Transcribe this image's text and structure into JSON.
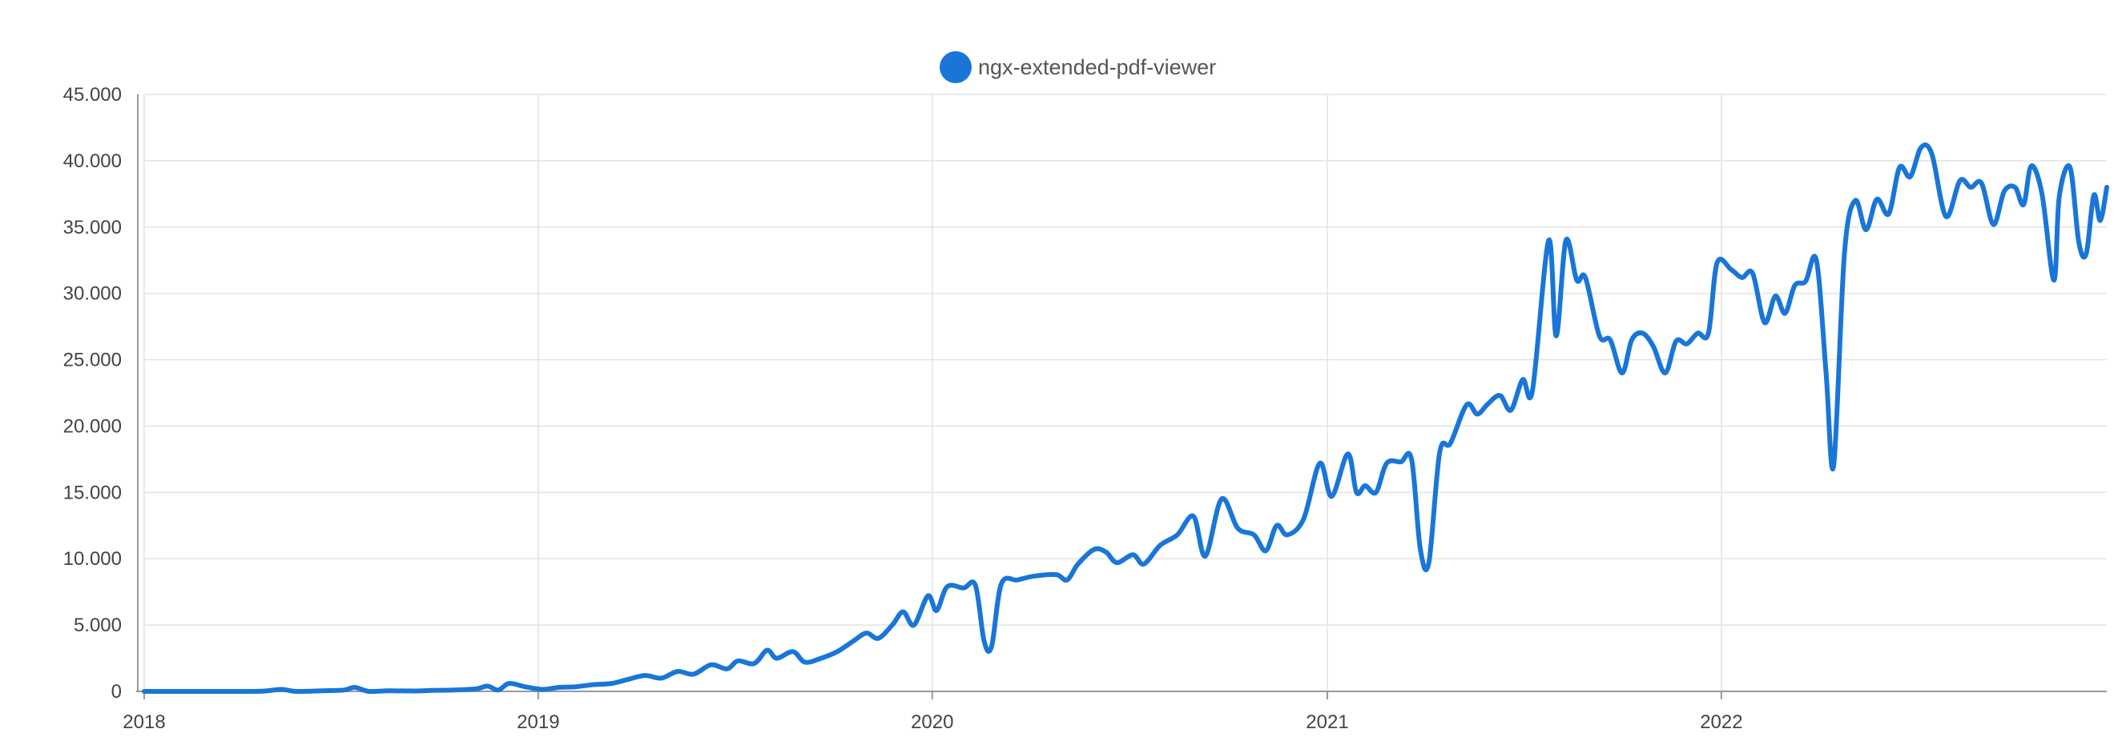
{
  "chart_data": {
    "type": "line",
    "legend": {
      "position": "top-center"
    },
    "grid": true,
    "ylim": [
      0,
      45000
    ],
    "xlim": [
      "2018-01-01",
      "2022-12-24"
    ],
    "y_tick_values": [
      0,
      5000,
      10000,
      15000,
      20000,
      25000,
      30000,
      35000,
      40000,
      45000
    ],
    "y_tick_labels": [
      "0",
      "5.000",
      "10.000",
      "15.000",
      "20.000",
      "25.000",
      "30.000",
      "35.000",
      "40.000",
      "45.000"
    ],
    "x_ticks": [
      {
        "date": "2018-01-01",
        "label": "2018"
      },
      {
        "date": "2019-01-01",
        "label": "2019"
      },
      {
        "date": "2020-01-01",
        "label": "2020"
      },
      {
        "date": "2021-01-01",
        "label": "2021"
      },
      {
        "date": "2022-01-01",
        "label": "2022"
      }
    ],
    "series": [
      {
        "name": "ngx-extended-pdf-viewer",
        "color": "#1976d8",
        "points": [
          [
            "2018-01-01",
            0
          ],
          [
            "2018-02-01",
            0
          ],
          [
            "2018-03-15",
            0
          ],
          [
            "2018-04-20",
            20
          ],
          [
            "2018-05-08",
            150
          ],
          [
            "2018-05-22",
            0
          ],
          [
            "2018-06-15",
            50
          ],
          [
            "2018-07-05",
            100
          ],
          [
            "2018-07-15",
            300
          ],
          [
            "2018-07-28",
            0
          ],
          [
            "2018-08-15",
            50
          ],
          [
            "2018-09-10",
            30
          ],
          [
            "2018-09-25",
            80
          ],
          [
            "2018-10-15",
            100
          ],
          [
            "2018-11-05",
            200
          ],
          [
            "2018-11-15",
            400
          ],
          [
            "2018-11-25",
            100
          ],
          [
            "2018-12-05",
            600
          ],
          [
            "2018-12-20",
            350
          ],
          [
            "2019-01-05",
            150
          ],
          [
            "2019-01-20",
            300
          ],
          [
            "2019-02-05",
            350
          ],
          [
            "2019-02-20",
            500
          ],
          [
            "2019-03-10",
            600
          ],
          [
            "2019-03-25",
            900
          ],
          [
            "2019-04-10",
            1200
          ],
          [
            "2019-04-25",
            1000
          ],
          [
            "2019-05-10",
            1500
          ],
          [
            "2019-05-25",
            1300
          ],
          [
            "2019-06-10",
            2000
          ],
          [
            "2019-06-25",
            1700
          ],
          [
            "2019-07-05",
            2300
          ],
          [
            "2019-07-20",
            2100
          ],
          [
            "2019-08-01",
            3100
          ],
          [
            "2019-08-10",
            2500
          ],
          [
            "2019-08-25",
            3000
          ],
          [
            "2019-09-05",
            2200
          ],
          [
            "2019-09-20",
            2500
          ],
          [
            "2019-10-05",
            3000
          ],
          [
            "2019-10-20",
            3800
          ],
          [
            "2019-11-01",
            4400
          ],
          [
            "2019-11-12",
            4000
          ],
          [
            "2019-11-25",
            5000
          ],
          [
            "2019-12-05",
            6000
          ],
          [
            "2019-12-15",
            5000
          ],
          [
            "2019-12-28",
            7200
          ],
          [
            "2020-01-05",
            6100
          ],
          [
            "2020-01-15",
            7900
          ],
          [
            "2020-01-30",
            7800
          ],
          [
            "2020-02-10",
            8000
          ],
          [
            "2020-02-18",
            3800
          ],
          [
            "2020-02-25",
            3400
          ],
          [
            "2020-03-05",
            8100
          ],
          [
            "2020-03-20",
            8400
          ],
          [
            "2020-04-05",
            8700
          ],
          [
            "2020-04-25",
            8800
          ],
          [
            "2020-05-05",
            8400
          ],
          [
            "2020-05-15",
            9600
          ],
          [
            "2020-05-30",
            10700
          ],
          [
            "2020-06-10",
            10500
          ],
          [
            "2020-06-20",
            9700
          ],
          [
            "2020-07-05",
            10300
          ],
          [
            "2020-07-15",
            9600
          ],
          [
            "2020-07-30",
            11000
          ],
          [
            "2020-08-15",
            11800
          ],
          [
            "2020-08-30",
            13200
          ],
          [
            "2020-09-10",
            10200
          ],
          [
            "2020-09-25",
            14500
          ],
          [
            "2020-10-10",
            12300
          ],
          [
            "2020-10-25",
            11800
          ],
          [
            "2020-11-05",
            10600
          ],
          [
            "2020-11-15",
            12500
          ],
          [
            "2020-11-25",
            11800
          ],
          [
            "2020-12-10",
            13000
          ],
          [
            "2020-12-25",
            17200
          ],
          [
            "2021-01-05",
            14700
          ],
          [
            "2021-01-20",
            17900
          ],
          [
            "2021-01-28",
            15000
          ],
          [
            "2021-02-05",
            15500
          ],
          [
            "2021-02-15",
            15000
          ],
          [
            "2021-02-25",
            17200
          ],
          [
            "2021-03-10",
            17300
          ],
          [
            "2021-03-20",
            17500
          ],
          [
            "2021-03-28",
            10800
          ],
          [
            "2021-04-05",
            9700
          ],
          [
            "2021-04-15",
            18000
          ],
          [
            "2021-04-25",
            18700
          ],
          [
            "2021-05-10",
            21600
          ],
          [
            "2021-05-20",
            20900
          ],
          [
            "2021-05-30",
            21700
          ],
          [
            "2021-06-10",
            22300
          ],
          [
            "2021-06-20",
            21200
          ],
          [
            "2021-07-01",
            23500
          ],
          [
            "2021-07-10",
            22700
          ],
          [
            "2021-07-25",
            34000
          ],
          [
            "2021-08-01",
            26800
          ],
          [
            "2021-08-10",
            34000
          ],
          [
            "2021-08-20",
            31000
          ],
          [
            "2021-08-28",
            31200
          ],
          [
            "2021-09-10",
            26800
          ],
          [
            "2021-09-20",
            26500
          ],
          [
            "2021-10-01",
            24000
          ],
          [
            "2021-10-10",
            26500
          ],
          [
            "2021-10-20",
            27000
          ],
          [
            "2021-10-30",
            26000
          ],
          [
            "2021-11-10",
            24000
          ],
          [
            "2021-11-20",
            26400
          ],
          [
            "2021-11-30",
            26200
          ],
          [
            "2021-12-10",
            27000
          ],
          [
            "2021-12-20",
            27000
          ],
          [
            "2021-12-28",
            32300
          ],
          [
            "2022-01-10",
            31800
          ],
          [
            "2022-01-20",
            31200
          ],
          [
            "2022-01-30",
            31500
          ],
          [
            "2022-02-10",
            27800
          ],
          [
            "2022-02-20",
            29800
          ],
          [
            "2022-03-01",
            28500
          ],
          [
            "2022-03-10",
            30600
          ],
          [
            "2022-03-20",
            30900
          ],
          [
            "2022-03-30",
            32500
          ],
          [
            "2022-04-08",
            24000
          ],
          [
            "2022-04-15",
            17000
          ],
          [
            "2022-04-25",
            33000
          ],
          [
            "2022-05-05",
            37000
          ],
          [
            "2022-05-15",
            34800
          ],
          [
            "2022-05-25",
            37100
          ],
          [
            "2022-06-05",
            36000
          ],
          [
            "2022-06-15",
            39500
          ],
          [
            "2022-06-25",
            38800
          ],
          [
            "2022-07-05",
            41000
          ],
          [
            "2022-07-15",
            40500
          ],
          [
            "2022-07-28",
            35800
          ],
          [
            "2022-08-10",
            38500
          ],
          [
            "2022-08-20",
            38000
          ],
          [
            "2022-08-30",
            38300
          ],
          [
            "2022-09-10",
            35200
          ],
          [
            "2022-09-20",
            37700
          ],
          [
            "2022-09-30",
            38000
          ],
          [
            "2022-10-08",
            36700
          ],
          [
            "2022-10-15",
            39600
          ],
          [
            "2022-10-25",
            37500
          ],
          [
            "2022-11-05",
            31000
          ],
          [
            "2022-11-10",
            37300
          ],
          [
            "2022-11-20",
            39500
          ],
          [
            "2022-11-28",
            33900
          ],
          [
            "2022-12-05",
            33000
          ],
          [
            "2022-12-12",
            37400
          ],
          [
            "2022-12-18",
            35500
          ],
          [
            "2022-12-24",
            38000
          ]
        ]
      }
    ]
  }
}
